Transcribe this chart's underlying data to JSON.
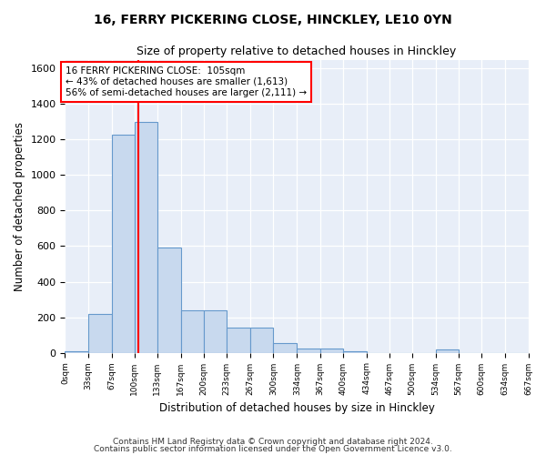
{
  "title": "16, FERRY PICKERING CLOSE, HINCKLEY, LE10 0YN",
  "subtitle": "Size of property relative to detached houses in Hinckley",
  "xlabel": "Distribution of detached houses by size in Hinckley",
  "ylabel": "Number of detached properties",
  "footnote1": "Contains HM Land Registry data © Crown copyright and database right 2024.",
  "footnote2": "Contains public sector information licensed under the Open Government Licence v3.0.",
  "bar_color": "#c8d9ee",
  "bar_edge_color": "#6699cc",
  "bin_edges": [
    0,
    33,
    67,
    100,
    133,
    167,
    200,
    233,
    267,
    300,
    334,
    367,
    400,
    434,
    467,
    500,
    534,
    567,
    600,
    634,
    667
  ],
  "bar_heights": [
    10,
    220,
    1230,
    1300,
    590,
    240,
    240,
    140,
    140,
    55,
    25,
    22,
    8,
    0,
    0,
    0,
    18,
    0,
    0,
    0
  ],
  "tick_labels": [
    "0sqm",
    "33sqm",
    "67sqm",
    "100sqm",
    "133sqm",
    "167sqm",
    "200sqm",
    "233sqm",
    "267sqm",
    "300sqm",
    "334sqm",
    "367sqm",
    "400sqm",
    "434sqm",
    "467sqm",
    "500sqm",
    "534sqm",
    "567sqm",
    "600sqm",
    "634sqm",
    "667sqm"
  ],
  "ylim": [
    0,
    1650
  ],
  "yticks": [
    0,
    200,
    400,
    600,
    800,
    1000,
    1200,
    1400,
    1600
  ],
  "vline_x": 105,
  "annotation_text1": "16 FERRY PICKERING CLOSE:  105sqm",
  "annotation_text2": "← 43% of detached houses are smaller (1,613)",
  "annotation_text3": "56% of semi-detached houses are larger (2,111) →",
  "bg_color": "#e8eef8"
}
